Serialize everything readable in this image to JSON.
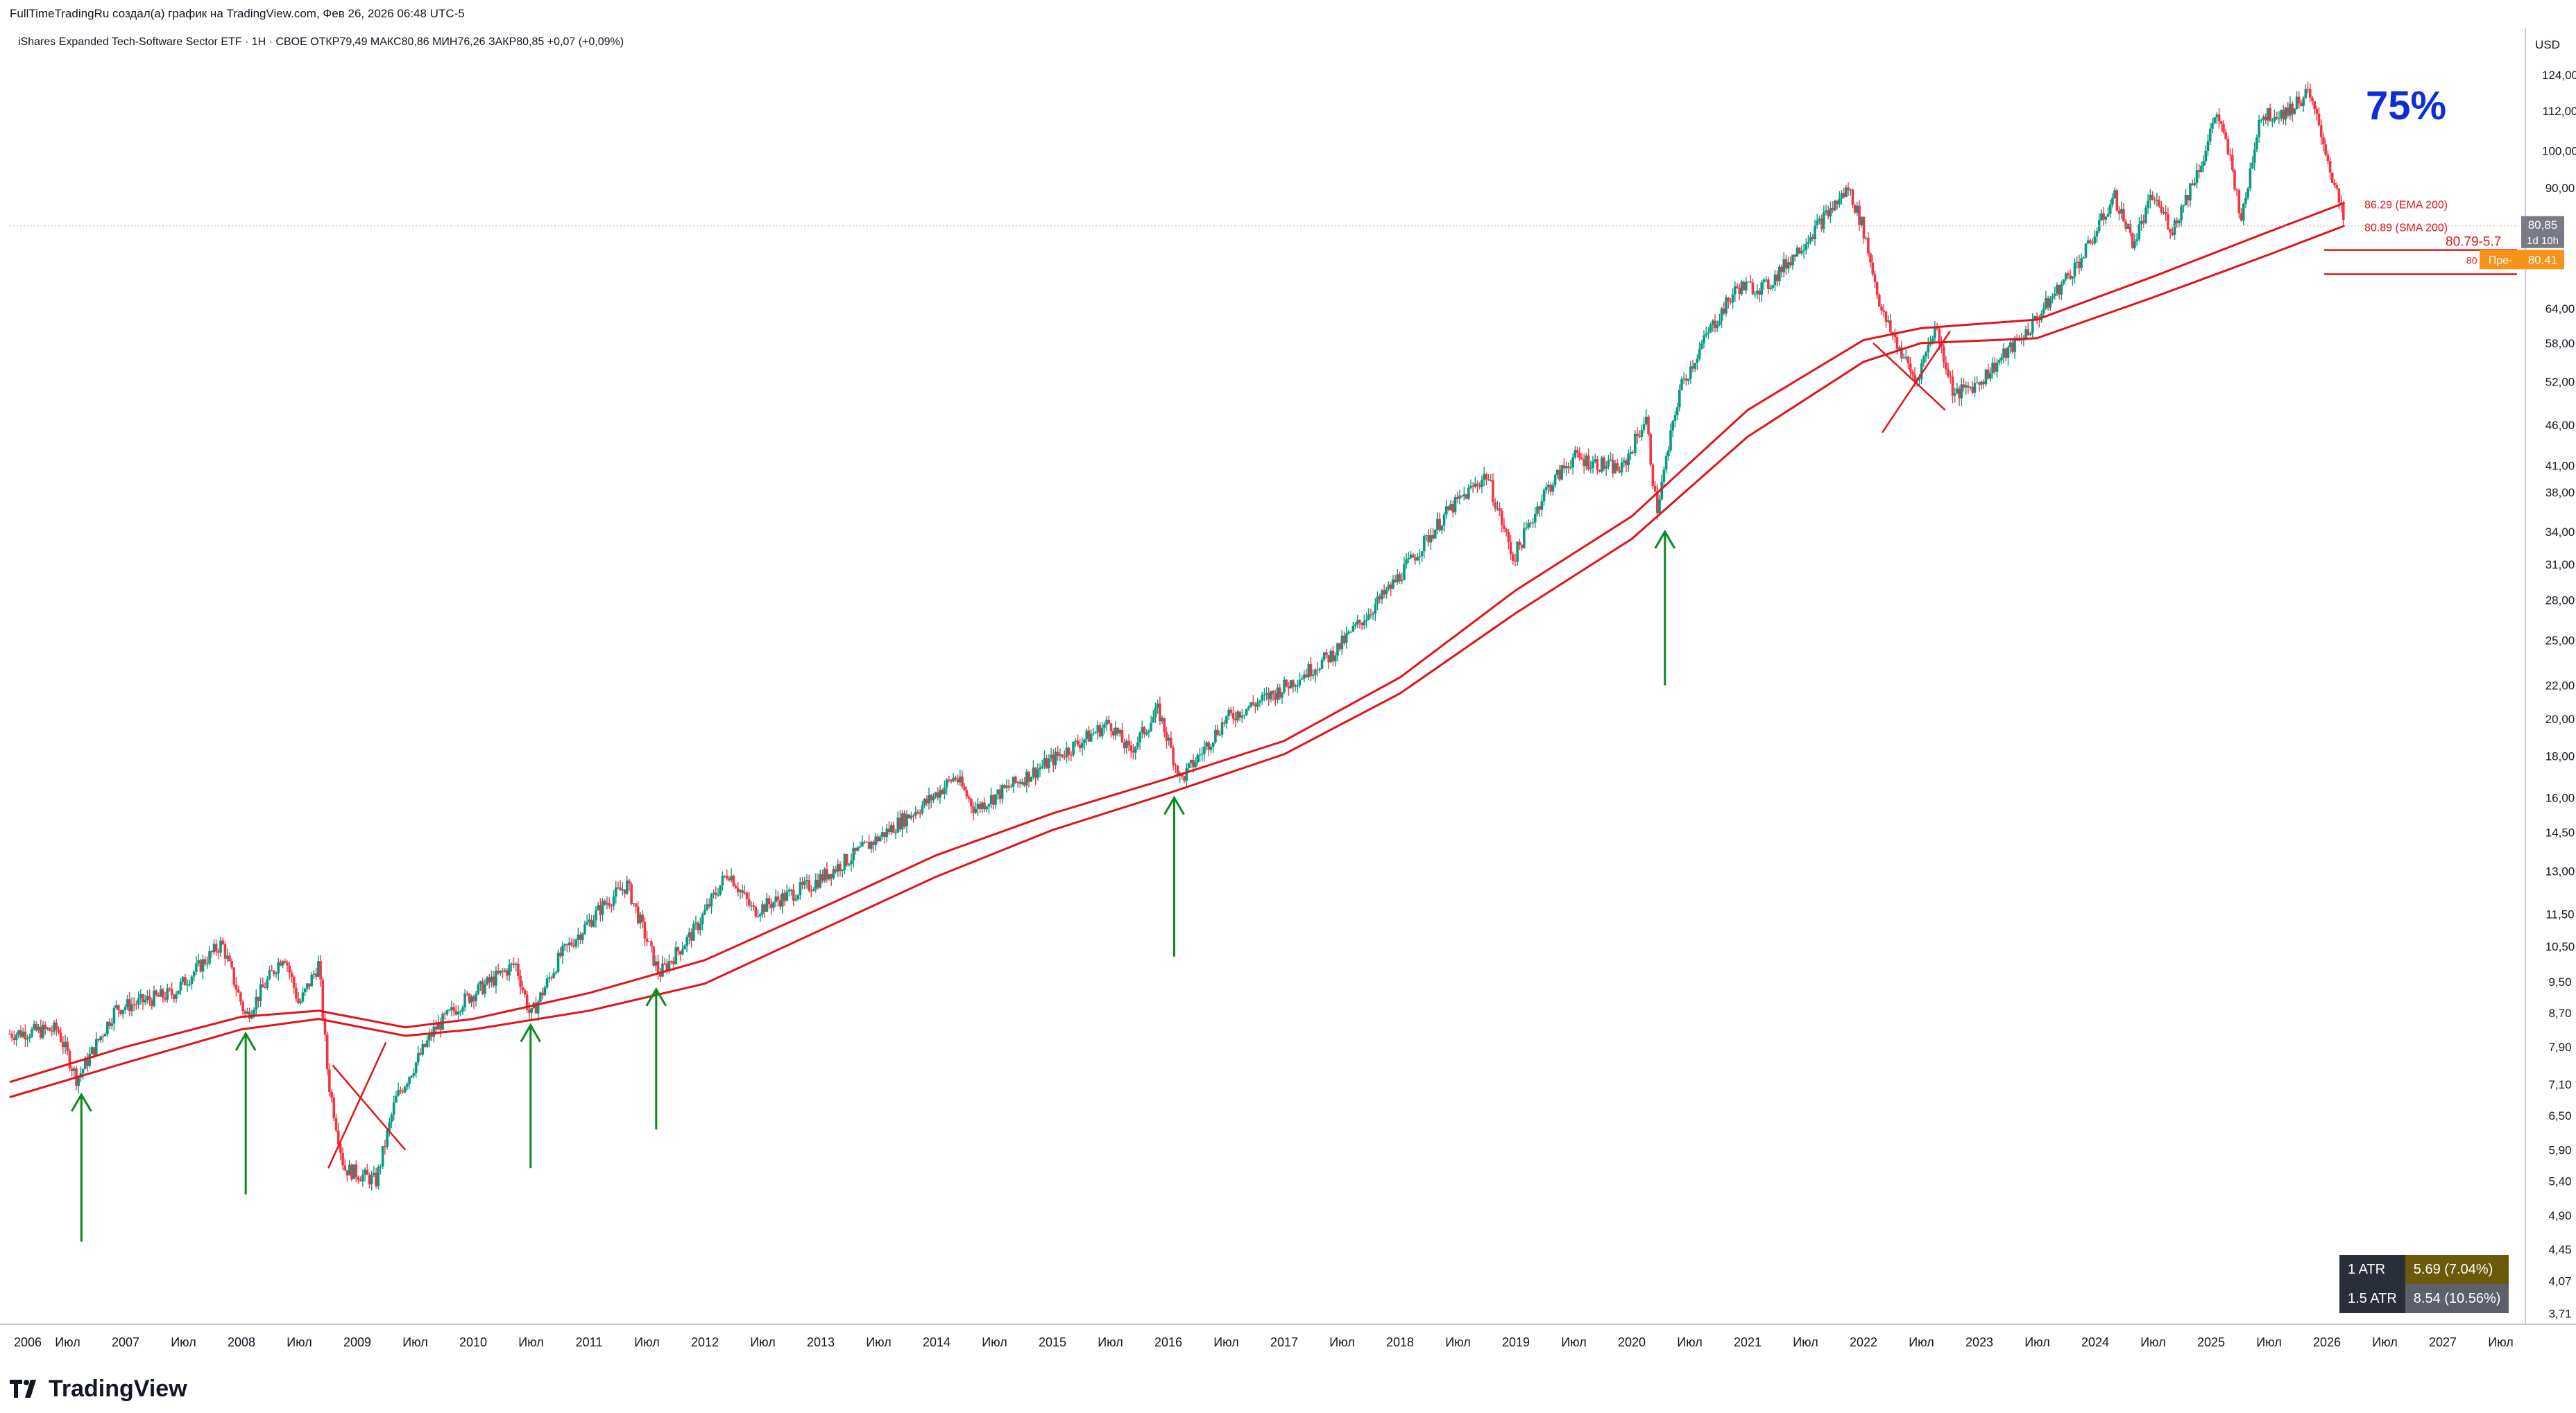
{
  "header": {
    "attribution": "FullTimeTradingRu создал(а) график на TradingView.com, Фев 26, 2026 06:48 UTC-5",
    "legend": "iShares Expanded Tech-Software Sector ETF · 1Н · CBOE  ОТКР79,49  МАКС80,86  МИН76,26  ЗАКР80,85  +0,07 (+0,09%)"
  },
  "brand": {
    "name": "TradingView"
  },
  "colors": {
    "up": "#089981",
    "down": "#f23645",
    "ma": "#e0141b",
    "arrow": "#0a8a1e",
    "annotation": "#0b2ed8",
    "price_tag": "#787b86",
    "pivot_tag": "#f7931a"
  },
  "atr": [
    {
      "label": "1 ATR",
      "value": "5.69 (7.04%)"
    },
    {
      "label": "1.5 ATR",
      "value": "8.54 (10.56%)"
    }
  ],
  "chart_data": {
    "type": "candlestick",
    "title": "iShares Expanded Tech-Software Sector ETF",
    "timeframe": "1Н",
    "exchange": "CBOE",
    "scale": "log",
    "currency": "USD",
    "last": {
      "open": 79.49,
      "high": 80.86,
      "low": 76.26,
      "close": 80.85,
      "change": "+0,07 (+0,09%)"
    },
    "ylim": [
      3.6,
      130
    ],
    "y_ticks": [
      "124,00",
      "112,00",
      "100,00",
      "90,00",
      "64,00",
      "58,00",
      "52,00",
      "46,00",
      "41,00",
      "38,00",
      "34,00",
      "31,00",
      "28,00",
      "25,00",
      "22,00",
      "20,00",
      "18,00",
      "16,00",
      "14,50",
      "13,00",
      "11,50",
      "10,50",
      "9,50",
      "8,70",
      "7,90",
      "7,10",
      "6,50",
      "5,90",
      "5,40",
      "4,90",
      "4,45",
      "4,07",
      "3,71"
    ],
    "x_ticks": [
      "2006",
      "Июл",
      "2007",
      "Июл",
      "2008",
      "Июл",
      "2009",
      "Июл",
      "2010",
      "Июл",
      "2011",
      "Июл",
      "2012",
      "Июл",
      "2013",
      "Июл",
      "2014",
      "Июл",
      "2015",
      "Июл",
      "2016",
      "Июл",
      "2017",
      "Июл",
      "2018",
      "Июл",
      "2019",
      "Июл",
      "2020",
      "Июл",
      "2021",
      "Июл",
      "2022",
      "Июл",
      "2023",
      "Июл",
      "2024",
      "Июл",
      "2025",
      "Июл",
      "2026",
      "Июл",
      "2027",
      "Июл"
    ],
    "price_path": [
      [
        "2006-01-01",
        8.2
      ],
      [
        "2006-06-01",
        8.3
      ],
      [
        "2006-08-01",
        7.2
      ],
      [
        "2006-12-01",
        8.8
      ],
      [
        "2007-06-01",
        9.2
      ],
      [
        "2007-11-01",
        10.6
      ],
      [
        "2008-01-15",
        8.6
      ],
      [
        "2008-05-15",
        10.3
      ],
      [
        "2008-07-01",
        8.9
      ],
      [
        "2008-09-01",
        10.0
      ],
      [
        "2008-10-01",
        7.2
      ],
      [
        "2008-11-20",
        5.6
      ],
      [
        "2009-03-01",
        5.4
      ],
      [
        "2009-05-01",
        6.8
      ],
      [
        "2009-09-01",
        8.3
      ],
      [
        "2009-12-01",
        9.0
      ],
      [
        "2010-05-15",
        10.0
      ],
      [
        "2010-07-01",
        8.6
      ],
      [
        "2010-10-01",
        10.2
      ],
      [
        "2011-02-15",
        11.8
      ],
      [
        "2011-05-01",
        12.5
      ],
      [
        "2011-08-10",
        9.7
      ],
      [
        "2011-12-01",
        11.0
      ],
      [
        "2012-03-15",
        13.0
      ],
      [
        "2012-06-01",
        11.6
      ],
      [
        "2012-12-01",
        12.5
      ],
      [
        "2013-06-01",
        14.0
      ],
      [
        "2013-12-01",
        15.8
      ],
      [
        "2014-03-01",
        17.0
      ],
      [
        "2014-05-01",
        15.5
      ],
      [
        "2014-12-01",
        17.5
      ],
      [
        "2015-07-01",
        19.8
      ],
      [
        "2015-09-01",
        18.2
      ],
      [
        "2015-12-01",
        20.5
      ],
      [
        "2016-02-10",
        16.8
      ],
      [
        "2016-07-01",
        20.0
      ],
      [
        "2016-12-01",
        21.5
      ],
      [
        "2017-06-01",
        24.0
      ],
      [
        "2017-12-01",
        29.0
      ],
      [
        "2018-06-01",
        36.0
      ],
      [
        "2018-10-01",
        40.0
      ],
      [
        "2018-12-24",
        31.5
      ],
      [
        "2019-04-01",
        38.0
      ],
      [
        "2019-07-01",
        42.0
      ],
      [
        "2019-12-01",
        40.5
      ],
      [
        "2020-02-15",
        47.0
      ],
      [
        "2020-03-20",
        36.0
      ],
      [
        "2020-06-01",
        51.0
      ],
      [
        "2020-09-01",
        60.0
      ],
      [
        "2020-12-01",
        68.0
      ],
      [
        "2021-03-01",
        68.0
      ],
      [
        "2021-06-01",
        75.0
      ],
      [
        "2021-11-15",
        90.0
      ],
      [
        "2022-01-01",
        80.0
      ],
      [
        "2022-03-01",
        63.0
      ],
      [
        "2022-06-15",
        52.0
      ],
      [
        "2022-08-15",
        61.0
      ],
      [
        "2022-10-15",
        50.0
      ],
      [
        "2023-01-01",
        52.0
      ],
      [
        "2023-06-01",
        60.0
      ],
      [
        "2023-12-01",
        75.0
      ],
      [
        "2024-03-01",
        88.0
      ],
      [
        "2024-05-01",
        77.0
      ],
      [
        "2024-07-01",
        88.0
      ],
      [
        "2024-09-01",
        80.0
      ],
      [
        "2024-12-15",
        100.0
      ],
      [
        "2025-01-15",
        112.0
      ],
      [
        "2025-03-01",
        98.0
      ],
      [
        "2025-04-08",
        82.0
      ],
      [
        "2025-06-01",
        110.0
      ],
      [
        "2025-09-01",
        112.0
      ],
      [
        "2025-11-01",
        118.0
      ],
      [
        "2025-12-15",
        105.0
      ],
      [
        "2026-01-20",
        92.0
      ],
      [
        "2026-02-26",
        80.85
      ]
    ],
    "series": [
      {
        "name": "EMA 200",
        "last": "86.29 (EMA 200)",
        "path": [
          [
            "2006-01-01",
            7.15
          ],
          [
            "2007-01-01",
            7.9
          ],
          [
            "2008-01-01",
            8.6
          ],
          [
            "2008-09-01",
            8.75
          ],
          [
            "2009-06-01",
            8.35
          ],
          [
            "2010-01-01",
            8.55
          ],
          [
            "2011-01-01",
            9.2
          ],
          [
            "2012-01-01",
            10.1
          ],
          [
            "2013-01-01",
            11.7
          ],
          [
            "2014-01-01",
            13.6
          ],
          [
            "2015-01-01",
            15.3
          ],
          [
            "2016-01-01",
            16.9
          ],
          [
            "2017-01-01",
            18.8
          ],
          [
            "2018-01-01",
            22.5
          ],
          [
            "2019-01-01",
            28.8
          ],
          [
            "2020-01-01",
            35.5
          ],
          [
            "2021-01-01",
            48.0
          ],
          [
            "2022-01-01",
            58.5
          ],
          [
            "2022-07-01",
            60.5
          ],
          [
            "2023-07-01",
            62.0
          ],
          [
            "2024-07-01",
            70.0
          ],
          [
            "2025-07-01",
            79.5
          ],
          [
            "2026-02-26",
            86.29
          ]
        ]
      },
      {
        "name": "SMA 200",
        "last": "80.89 (SMA 200)",
        "path": [
          [
            "2006-01-01",
            6.85
          ],
          [
            "2007-01-01",
            7.55
          ],
          [
            "2008-01-01",
            8.3
          ],
          [
            "2008-09-01",
            8.55
          ],
          [
            "2009-06-01",
            8.15
          ],
          [
            "2010-01-01",
            8.3
          ],
          [
            "2011-01-01",
            8.75
          ],
          [
            "2012-01-01",
            9.45
          ],
          [
            "2013-01-01",
            11.0
          ],
          [
            "2014-01-01",
            12.8
          ],
          [
            "2015-01-01",
            14.6
          ],
          [
            "2016-01-01",
            16.2
          ],
          [
            "2017-01-01",
            18.1
          ],
          [
            "2018-01-01",
            21.5
          ],
          [
            "2019-01-01",
            27.0
          ],
          [
            "2020-01-01",
            33.3
          ],
          [
            "2021-01-01",
            44.5
          ],
          [
            "2022-01-01",
            55.0
          ],
          [
            "2022-07-01",
            58.0
          ],
          [
            "2023-07-01",
            58.8
          ],
          [
            "2024-07-01",
            66.0
          ],
          [
            "2025-07-01",
            74.5
          ],
          [
            "2026-02-26",
            80.89
          ]
        ]
      }
    ],
    "annotations": {
      "big_text": "75%",
      "price_label": "80,85",
      "countdown": "1d 10h",
      "pivot_tag": "80.41",
      "pivot_prefix": "Пре-",
      "range_text": "80.79-5.7",
      "stub_text": "80",
      "up_arrows": [
        {
          "x": "2006-08-15",
          "from": 4.55,
          "to": 6.9
        },
        {
          "x": "2008-01-15",
          "from": 5.2,
          "to": 8.2
        },
        {
          "x": "2010-07-01",
          "from": 5.6,
          "to": 8.4
        },
        {
          "x": "2011-08-01",
          "from": 6.25,
          "to": 9.3
        },
        {
          "x": "2016-01-20",
          "from": 10.2,
          "to": 16.0
        },
        {
          "x": "2020-04-15",
          "from": 22.0,
          "to": 34.0
        }
      ],
      "crosses": [
        {
          "x1": "2008-10-01",
          "y1": 5.6,
          "x2": "2009-04-01",
          "y2": 8.0
        },
        {
          "x1": "2008-10-15",
          "y1": 7.5,
          "x2": "2009-06-01",
          "y2": 5.9
        },
        {
          "x1": "2022-02-01",
          "y1": 58.0,
          "x2": "2022-09-15",
          "y2": 48.0
        },
        {
          "x1": "2022-03-01",
          "y1": 45.0,
          "x2": "2022-10-01",
          "y2": 60.0
        }
      ]
    }
  }
}
